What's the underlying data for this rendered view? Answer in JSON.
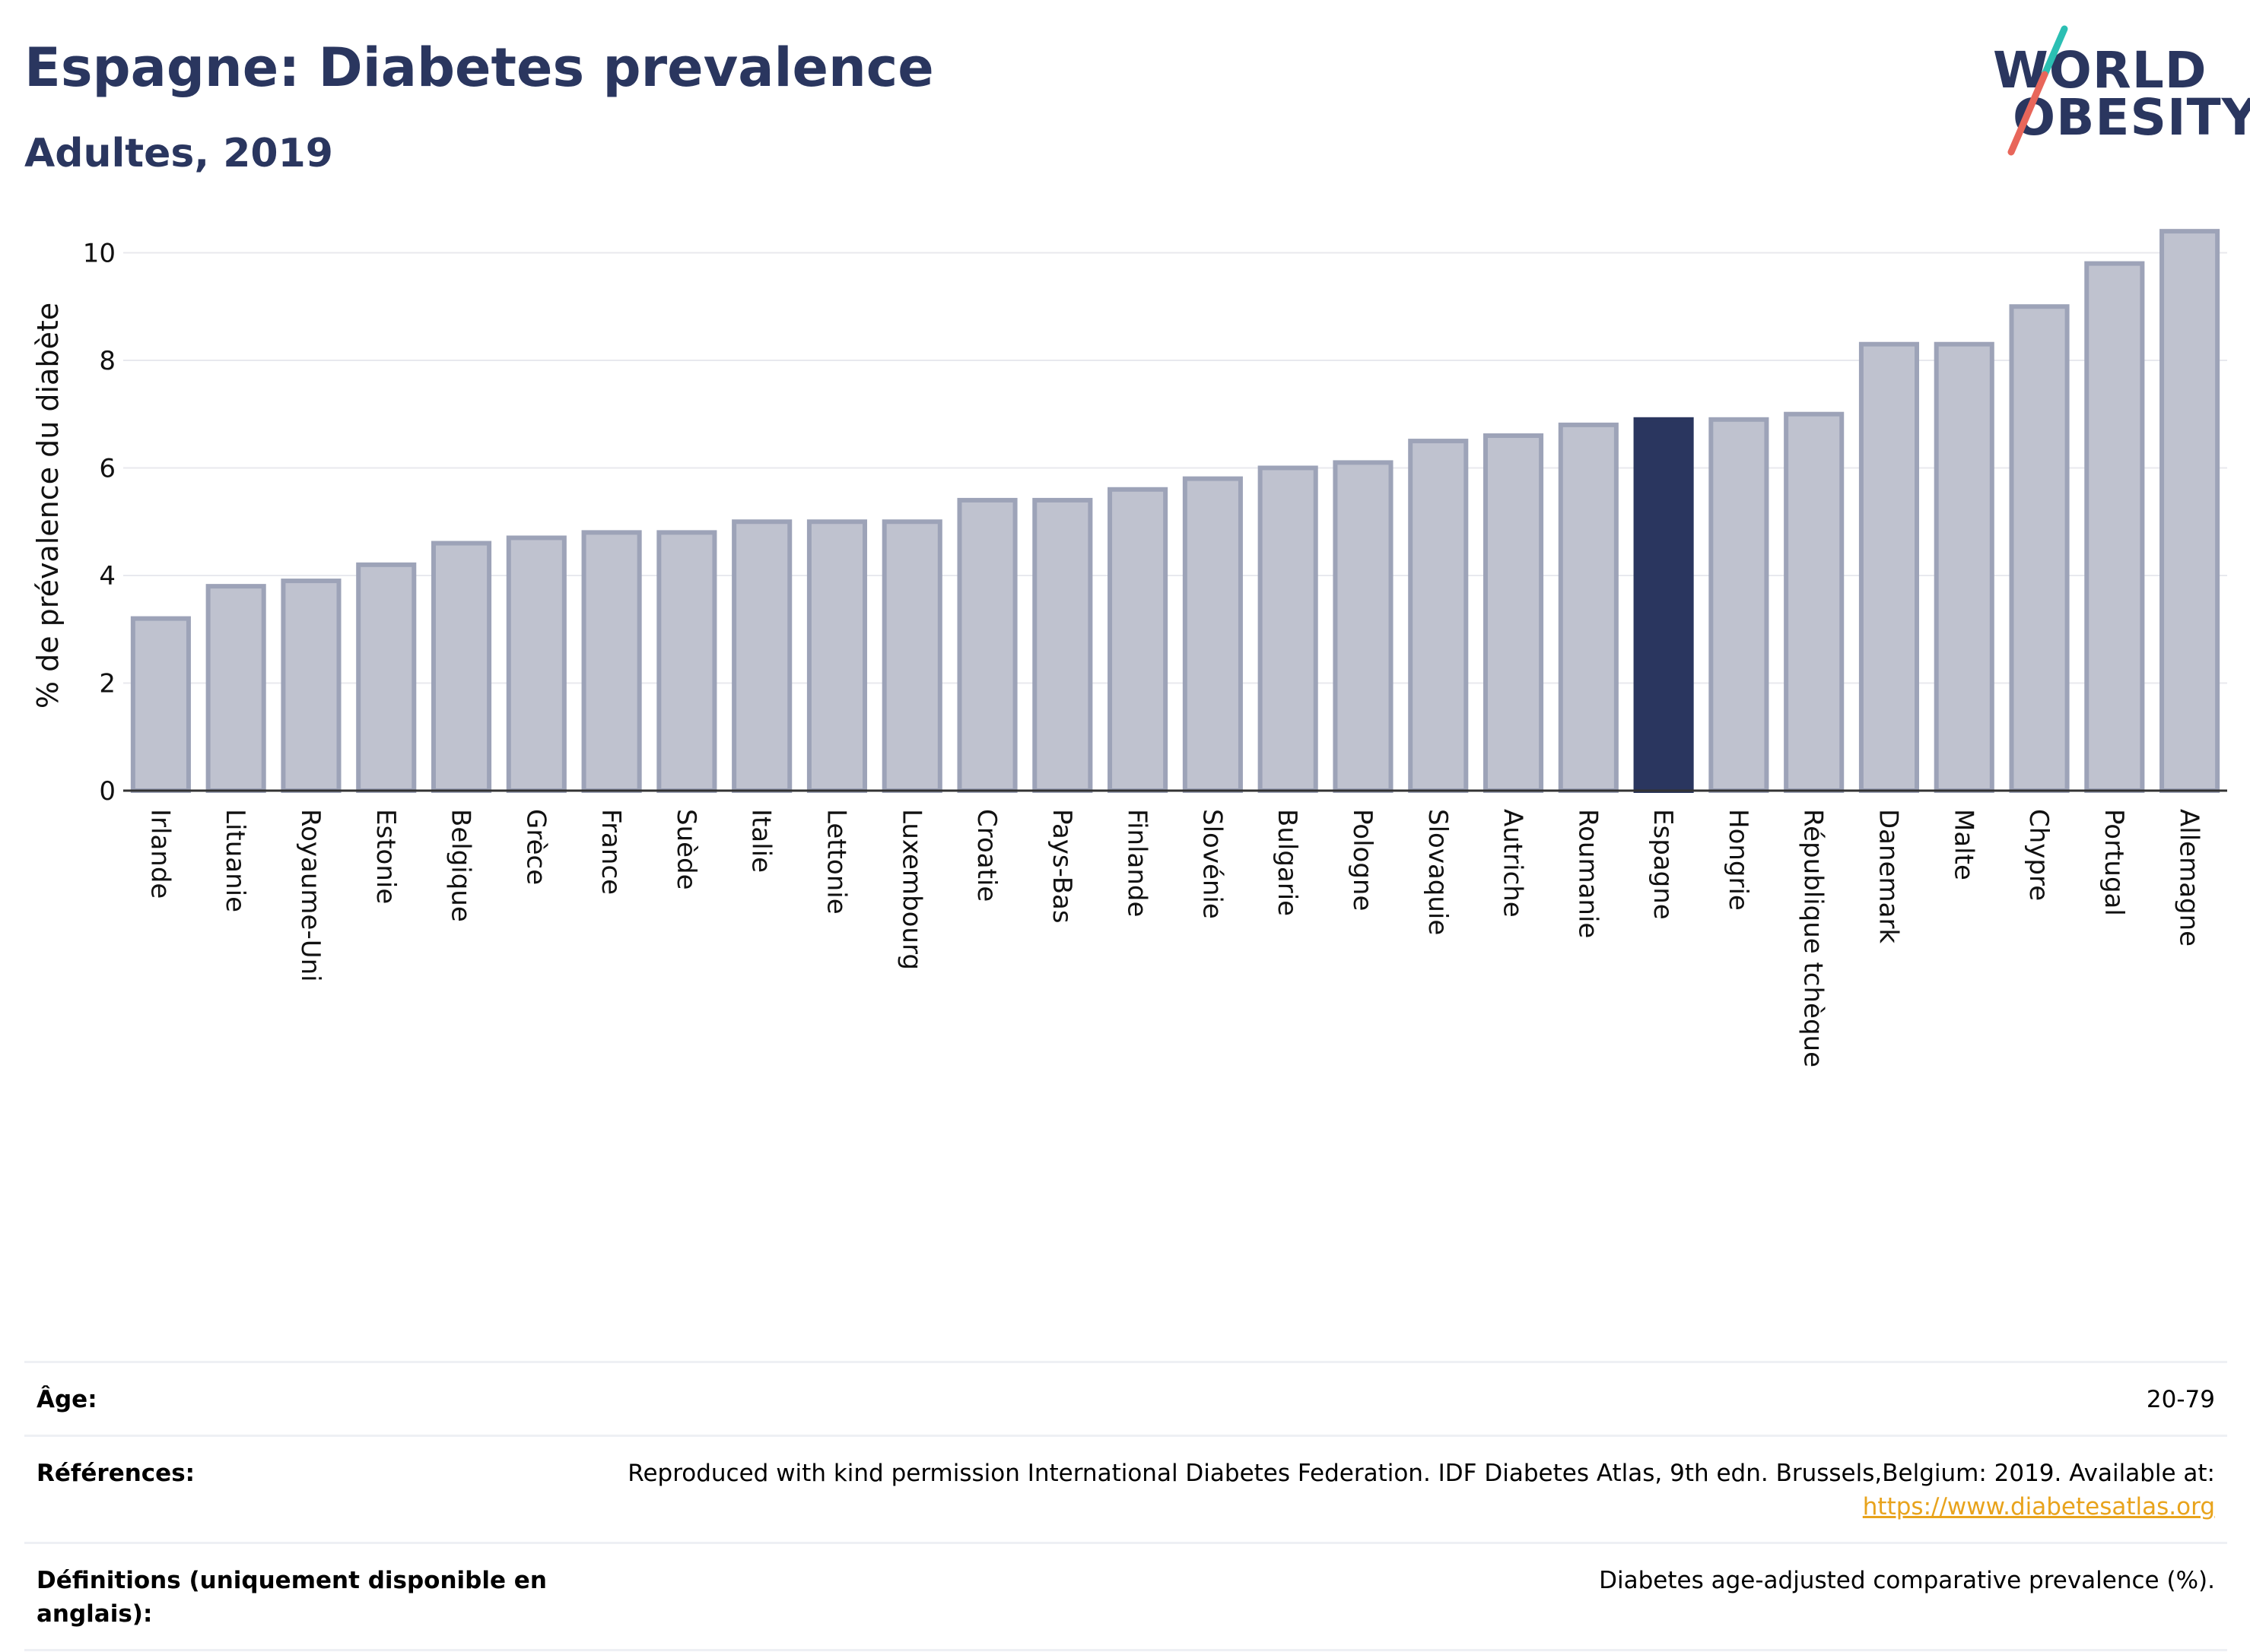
{
  "header": {
    "title": "Espagne: Diabetes prevalence",
    "subtitle": "Adultes, 2019"
  },
  "logo": {
    "line1": "WORLD",
    "line2": "OBESITY"
  },
  "colors": {
    "bar": "#bfc2cf",
    "bar_border": "#9da3b8",
    "highlight": "#2a365f",
    "grid": "#e8e9ee",
    "title": "#2a365f",
    "logo_slash_top": "#2bbfb3",
    "logo_slash_bottom": "#e8665a"
  },
  "chart_data": {
    "type": "bar",
    "title": "Espagne: Diabetes prevalence",
    "subtitle": "Adultes, 2019",
    "xlabel": "",
    "ylabel": "% de prévalence du diabète",
    "ylim": [
      0,
      10.6
    ],
    "yticks": [
      0,
      2,
      4,
      6,
      8,
      10
    ],
    "grid": true,
    "highlight": "Espagne",
    "categories": [
      "Irlande",
      "Lituanie",
      "Royaume-Uni",
      "Estonie",
      "Belgique",
      "Grèce",
      "France",
      "Suède",
      "Italie",
      "Lettonie",
      "Luxembourg",
      "Croatie",
      "Pays-Bas",
      "Finlande",
      "Slovénie",
      "Bulgarie",
      "Pologne",
      "Slovaquie",
      "Autriche",
      "Roumanie",
      "Espagne",
      "Hongrie",
      "République tchèque",
      "Danemark",
      "Malte",
      "Chypre",
      "Portugal",
      "Allemagne"
    ],
    "values": [
      3.2,
      3.8,
      3.9,
      4.2,
      4.6,
      4.7,
      4.8,
      4.8,
      5.0,
      5.0,
      5.0,
      5.4,
      5.4,
      5.6,
      5.8,
      6.0,
      6.1,
      6.5,
      6.6,
      6.8,
      6.9,
      6.9,
      7.0,
      8.3,
      8.3,
      9.0,
      9.8,
      10.4
    ]
  },
  "meta": {
    "age_label": "Âge:",
    "age_value": "20-79",
    "refs_label": "Références:",
    "refs_value": "Reproduced with kind permission International Diabetes Federation. IDF Diabetes Atlas, 9th edn. Brussels,Belgium: 2019. Available at:",
    "refs_link": "https://www.diabetesatlas.org",
    "defs_label": "Définitions (uniquement disponible en anglais):",
    "defs_value": "Diabetes age-adjusted comparative prevalence (%)."
  }
}
